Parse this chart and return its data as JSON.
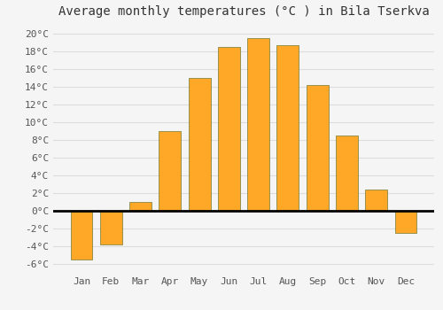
{
  "months": [
    "Jan",
    "Feb",
    "Mar",
    "Apr",
    "May",
    "Jun",
    "Jul",
    "Aug",
    "Sep",
    "Oct",
    "Nov",
    "Dec"
  ],
  "temperatures": [
    -5.5,
    -3.8,
    1.0,
    9.0,
    15.0,
    18.5,
    19.5,
    18.7,
    14.2,
    8.5,
    2.4,
    -2.5
  ],
  "bar_color": "#FFA726",
  "bar_edge_color": "#888844",
  "title": "Average monthly temperatures (°C ) in Bila Tserkva",
  "ylim": [
    -7,
    21
  ],
  "yticks": [
    -6,
    -4,
    -2,
    0,
    2,
    4,
    6,
    8,
    10,
    12,
    14,
    16,
    18,
    20
  ],
  "ytick_labels": [
    "-6°C",
    "-4°C",
    "-2°C",
    "0°C",
    "2°C",
    "4°C",
    "6°C",
    "8°C",
    "10°C",
    "12°C",
    "14°C",
    "16°C",
    "18°C",
    "20°C"
  ],
  "background_color": "#f5f5f5",
  "plot_bg_color": "#f5f5f5",
  "grid_color": "#dddddd",
  "title_fontsize": 10,
  "tick_fontsize": 8,
  "bar_width": 0.75
}
